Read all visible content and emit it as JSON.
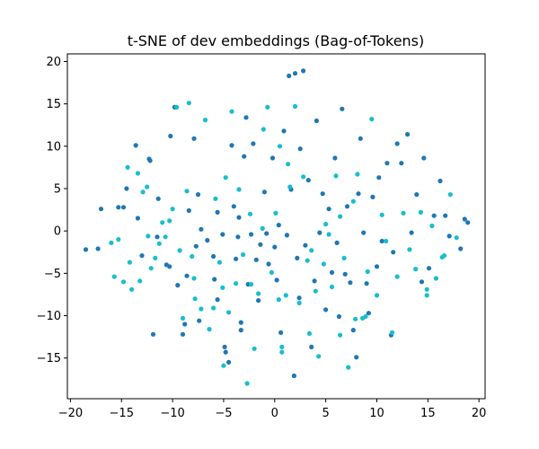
{
  "chart_data": {
    "type": "scatter",
    "title": "t-SNE of dev embeddings (Bag-of-Tokens)",
    "xlabel": "",
    "ylabel": "",
    "xlim": [
      -20.3,
      20.6
    ],
    "ylim": [
      -19.8,
      20.9
    ],
    "xticks": [
      -20,
      -15,
      -10,
      -5,
      0,
      5,
      10,
      15,
      20
    ],
    "yticks": [
      -15,
      -10,
      -5,
      0,
      5,
      10,
      15,
      20
    ],
    "grid": false,
    "legend": "none",
    "series": [
      {
        "color": "#1f77b4",
        "points": [
          [
            -18.5,
            -2.2
          ],
          [
            -17.3,
            -2.1
          ],
          [
            -17.0,
            2.6
          ],
          [
            -15.3,
            2.8
          ],
          [
            -14.8,
            2.8
          ],
          [
            -14.5,
            5.0
          ],
          [
            -13.6,
            10.1
          ],
          [
            -13.4,
            1.5
          ],
          [
            -13.0,
            -2.9
          ],
          [
            -12.3,
            8.5
          ],
          [
            -12.2,
            8.3
          ],
          [
            -11.9,
            -12.2
          ],
          [
            -11.5,
            -0.7
          ],
          [
            -11.4,
            3.8
          ],
          [
            -10.6,
            -4.0
          ],
          [
            -10.2,
            11.2
          ],
          [
            -10.3,
            -4.2
          ],
          [
            -9.8,
            14.6
          ],
          [
            -9.5,
            -6.4
          ],
          [
            -9.0,
            -12.2
          ],
          [
            -8.8,
            -11.0
          ],
          [
            -8.6,
            -5.3
          ],
          [
            -8.4,
            2.4
          ],
          [
            -7.9,
            10.9
          ],
          [
            -7.7,
            -1.8
          ],
          [
            -7.5,
            4.3
          ],
          [
            -7.2,
            0.2
          ],
          [
            -7.4,
            -10.6
          ],
          [
            -6.6,
            -1.1
          ],
          [
            -6.0,
            -3.0
          ],
          [
            -5.9,
            -5.7
          ],
          [
            -5.6,
            2.2
          ],
          [
            -5.6,
            -8.1
          ],
          [
            -5.1,
            -0.4
          ],
          [
            -4.9,
            -13.7
          ],
          [
            -4.8,
            -14.3
          ],
          [
            -4.5,
            -15.5
          ],
          [
            -4.2,
            10.1
          ],
          [
            -4.0,
            2.9
          ],
          [
            -3.8,
            -3.3
          ],
          [
            -3.6,
            -0.7
          ],
          [
            -3.5,
            1.6
          ],
          [
            -3.3,
            -11.7
          ],
          [
            -3.3,
            -10.8
          ],
          [
            -3.0,
            8.8
          ],
          [
            -2.8,
            13.4
          ],
          [
            -2.6,
            -6.3
          ],
          [
            -2.3,
            -0.4
          ],
          [
            -2.1,
            10.3
          ],
          [
            -1.8,
            -3.4
          ],
          [
            -1.6,
            -8.2
          ],
          [
            -1.4,
            -1.6
          ],
          [
            -1.0,
            4.6
          ],
          [
            -0.8,
            -0.3
          ],
          [
            -0.6,
            -3.9
          ],
          [
            -0.2,
            8.6
          ],
          [
            0.0,
            -1.9
          ],
          [
            0.2,
            -5.8
          ],
          [
            0.4,
            0.7
          ],
          [
            0.6,
            -12.0
          ],
          [
            0.9,
            11.8
          ],
          [
            1.2,
            -0.5
          ],
          [
            1.4,
            18.3
          ],
          [
            1.6,
            4.9
          ],
          [
            1.9,
            -17.1
          ],
          [
            2.0,
            18.6
          ],
          [
            2.2,
            -3.2
          ],
          [
            2.4,
            -7.9
          ],
          [
            2.5,
            9.7
          ],
          [
            2.8,
            18.9
          ],
          [
            3.0,
            -1.7
          ],
          [
            3.3,
            6.0
          ],
          [
            3.6,
            -13.7
          ],
          [
            3.9,
            -5.9
          ],
          [
            4.1,
            13.0
          ],
          [
            4.4,
            -0.2
          ],
          [
            4.7,
            4.4
          ],
          [
            5.0,
            -9.3
          ],
          [
            5.3,
            2.6
          ],
          [
            5.6,
            -4.9
          ],
          [
            5.9,
            8.6
          ],
          [
            6.1,
            -1.4
          ],
          [
            6.3,
            -10.1
          ],
          [
            6.6,
            14.4
          ],
          [
            6.9,
            -5.1
          ],
          [
            7.1,
            2.9
          ],
          [
            7.4,
            -6.1
          ],
          [
            7.7,
            -11.7
          ],
          [
            8.0,
            -14.9
          ],
          [
            8.2,
            4.4
          ],
          [
            8.4,
            10.9
          ],
          [
            8.7,
            -0.2
          ],
          [
            9.0,
            -6.2
          ],
          [
            9.2,
            -9.7
          ],
          [
            9.6,
            4.0
          ],
          [
            10.0,
            -4.2
          ],
          [
            10.2,
            6.3
          ],
          [
            10.5,
            -1.2
          ],
          [
            11.0,
            8.0
          ],
          [
            11.4,
            -12.3
          ],
          [
            11.6,
            -2.5
          ],
          [
            12.0,
            10.3
          ],
          [
            12.4,
            8.0
          ],
          [
            13.0,
            11.4
          ],
          [
            13.4,
            -0.2
          ],
          [
            13.9,
            4.3
          ],
          [
            14.4,
            -6.0
          ],
          [
            14.6,
            8.6
          ],
          [
            15.1,
            -4.4
          ],
          [
            15.6,
            1.8
          ],
          [
            16.2,
            5.9
          ],
          [
            16.7,
            1.8
          ],
          [
            17.1,
            -0.6
          ],
          [
            18.2,
            -2.1
          ],
          [
            18.6,
            1.4
          ],
          [
            18.9,
            1.0
          ]
        ]
      },
      {
        "color": "#17becf",
        "points": [
          [
            -16.0,
            -1.4
          ],
          [
            -15.7,
            -5.4
          ],
          [
            -15.3,
            -1.0
          ],
          [
            -14.8,
            -6.0
          ],
          [
            -14.4,
            7.5
          ],
          [
            -14.2,
            -3.7
          ],
          [
            -14.0,
            -6.9
          ],
          [
            -13.4,
            6.8
          ],
          [
            -13.2,
            -5.9
          ],
          [
            -12.9,
            4.6
          ],
          [
            -12.5,
            5.2
          ],
          [
            -12.1,
            -4.4
          ],
          [
            -11.7,
            -3.2
          ],
          [
            -11.3,
            -1.5
          ],
          [
            -11.0,
            1.0
          ],
          [
            -10.7,
            -0.7
          ],
          [
            -10.3,
            1.2
          ],
          [
            -10.0,
            2.6
          ],
          [
            -9.6,
            14.6
          ],
          [
            -9.3,
            -2.3
          ],
          [
            -9.0,
            -10.3
          ],
          [
            -8.6,
            4.7
          ],
          [
            -8.4,
            15.1
          ],
          [
            -8.1,
            -3.0
          ],
          [
            -7.8,
            -8.0
          ],
          [
            -7.2,
            -9.2
          ],
          [
            -6.8,
            13.1
          ],
          [
            -6.4,
            -11.6
          ],
          [
            -6.0,
            -9.1
          ],
          [
            -5.8,
            3.8
          ],
          [
            -5.4,
            -3.7
          ],
          [
            -5.1,
            -6.7
          ],
          [
            -5.0,
            -15.9
          ],
          [
            -4.8,
            6.3
          ],
          [
            -4.5,
            -9.6
          ],
          [
            -4.2,
            14.1
          ],
          [
            -3.8,
            -6.2
          ],
          [
            -3.5,
            4.9
          ],
          [
            -3.1,
            -2.8
          ],
          [
            -2.7,
            -18.0
          ],
          [
            -2.4,
            2.0
          ],
          [
            -2.0,
            -13.9
          ],
          [
            -1.6,
            -7.4
          ],
          [
            -1.2,
            0.3
          ],
          [
            -0.7,
            14.6
          ],
          [
            -0.3,
            -4.9
          ],
          [
            0.1,
            2.1
          ],
          [
            0.5,
            10.0
          ],
          [
            0.7,
            -13.7
          ],
          [
            1.1,
            -7.6
          ],
          [
            1.5,
            5.2
          ],
          [
            2.0,
            14.7
          ],
          [
            2.4,
            -8.5
          ],
          [
            2.8,
            6.4
          ],
          [
            3.2,
            -3.5
          ],
          [
            3.6,
            -2.3
          ],
          [
            4.0,
            -7.1
          ],
          [
            4.3,
            -14.8
          ],
          [
            4.8,
            -3.9
          ],
          [
            5.3,
            -0.4
          ],
          [
            5.6,
            -6.6
          ],
          [
            6.0,
            6.5
          ],
          [
            6.4,
            1.7
          ],
          [
            6.8,
            -3.2
          ],
          [
            7.2,
            -16.1
          ],
          [
            7.7,
            3.5
          ],
          [
            8.1,
            6.7
          ],
          [
            8.6,
            -10.3
          ],
          [
            9.1,
            -4.8
          ],
          [
            9.5,
            13.2
          ],
          [
            10.0,
            -7.6
          ],
          [
            10.5,
            1.9
          ],
          [
            10.9,
            -1.2
          ],
          [
            11.5,
            -12.0
          ],
          [
            12.0,
            -5.4
          ],
          [
            12.6,
            2.1
          ],
          [
            13.2,
            -2.2
          ],
          [
            13.8,
            -4.5
          ],
          [
            14.3,
            2.2
          ],
          [
            14.9,
            -6.9
          ],
          [
            15.4,
            0.6
          ],
          [
            15.8,
            -5.6
          ],
          [
            16.4,
            -3.1
          ],
          [
            17.2,
            4.3
          ],
          [
            17.8,
            -0.8
          ],
          [
            16.6,
            -2.9
          ],
          [
            14.9,
            -7.6
          ],
          [
            8.9,
            -10.1
          ],
          [
            7.9,
            -10.4
          ],
          [
            6.4,
            -12.3
          ],
          [
            3.4,
            -12.1
          ],
          [
            0.7,
            -14.3
          ],
          [
            -2.3,
            -6.3
          ],
          [
            -7.9,
            -5.6
          ],
          [
            -12.4,
            -0.6
          ],
          [
            0.4,
            -8.1
          ],
          [
            -1.1,
            12.0
          ],
          [
            1.3,
            7.9
          ],
          [
            5.0,
            0.8
          ]
        ]
      }
    ]
  }
}
